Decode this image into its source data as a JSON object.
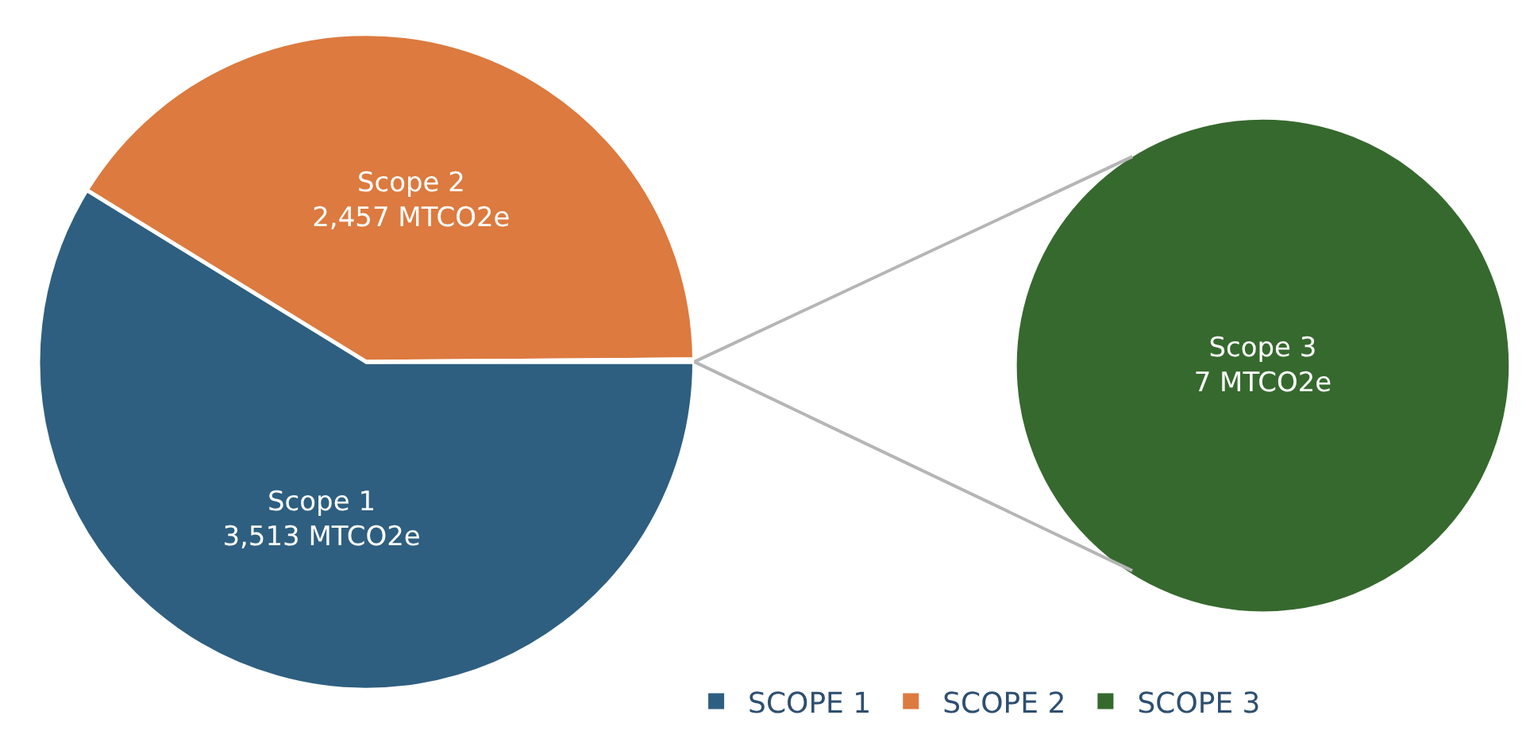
{
  "chart_data": [
    {
      "type": "pie",
      "categories": [
        "SCOPE 1",
        "SCOPE 2",
        "SCOPE 3"
      ],
      "values": [
        3513,
        2457,
        7
      ],
      "colors": [
        "#2e5f80",
        "#dc7a3f",
        "#36692e"
      ],
      "value_labels": [
        "Scope 1\n3,513 MTCO2e",
        "Scope 2\n2,457 MTCO2e",
        null
      ],
      "legend": "bottom"
    },
    {
      "type": "pie",
      "categories": [
        null
      ],
      "values": [
        7
      ],
      "colors": [
        "#36692e"
      ],
      "value_labels": [
        "Scope 3\n7 MTCO2e"
      ]
    }
  ]
}
